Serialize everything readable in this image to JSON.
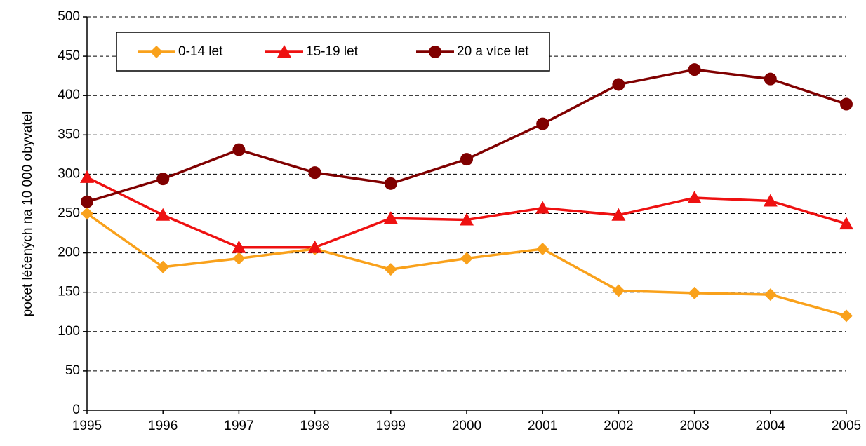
{
  "chart_data": {
    "type": "line",
    "ylabel": "počet léčených na 10 000 obyvatel",
    "x": [
      1995,
      1996,
      1997,
      1998,
      1999,
      2000,
      2001,
      2002,
      2003,
      2004,
      2005
    ],
    "xlim": [
      1995,
      2005
    ],
    "xticks": [
      1995,
      1996,
      1997,
      1998,
      1999,
      2000,
      2001,
      2002,
      2003,
      2004,
      2005
    ],
    "ylim": [
      0,
      500
    ],
    "yticks": [
      0,
      50,
      100,
      150,
      200,
      250,
      300,
      350,
      400,
      450,
      500
    ],
    "grid": true,
    "series": [
      {
        "name": "0-14 let",
        "color": "#F9A11B",
        "marker": "diamond",
        "values": [
          250,
          182,
          193,
          205,
          179,
          193,
          205,
          152,
          149,
          147,
          120
        ]
      },
      {
        "name": "15-19 let",
        "color": "#EE1111",
        "marker": "triangle",
        "values": [
          296,
          248,
          207,
          207,
          244,
          242,
          257,
          248,
          270,
          266,
          237
        ]
      },
      {
        "name": "20 a více let",
        "color": "#800000",
        "marker": "circle",
        "values": [
          265,
          294,
          331,
          302,
          288,
          319,
          364,
          414,
          433,
          421,
          389
        ]
      }
    ]
  }
}
